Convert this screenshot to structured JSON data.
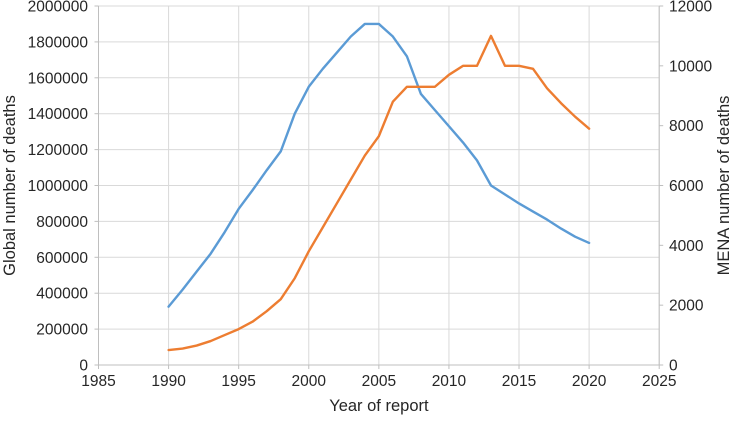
{
  "chart_data": {
    "type": "line",
    "title": "",
    "xlabel": "Year of report",
    "grid": true,
    "legend_position": "none",
    "x_axis": {
      "min": 1985,
      "max": 2025,
      "step": 5,
      "ticks": [
        1985,
        1990,
        1995,
        2000,
        2005,
        2010,
        2015,
        2020,
        2025
      ]
    },
    "y_left": {
      "label": "Global number of deaths",
      "min": 0,
      "max": 2000000,
      "step": 200000,
      "ticks": [
        0,
        200000,
        400000,
        600000,
        800000,
        1000000,
        1200000,
        1400000,
        1600000,
        1800000,
        2000000
      ]
    },
    "y_right": {
      "label": "MENA number of deaths",
      "min": 0,
      "max": 12000,
      "step": 2000,
      "ticks": [
        0,
        2000,
        4000,
        6000,
        8000,
        10000,
        12000
      ]
    },
    "x": [
      1990,
      1991,
      1992,
      1993,
      1994,
      1995,
      1996,
      1997,
      1998,
      1999,
      2000,
      2001,
      2002,
      2003,
      2004,
      2005,
      2006,
      2007,
      2008,
      2009,
      2010,
      2011,
      2012,
      2013,
      2014,
      2015,
      2016,
      2017,
      2018,
      2019,
      2020
    ],
    "series": [
      {
        "name": "Global number of deaths",
        "axis": "left",
        "color": "#5B9BD5",
        "values": [
          325000,
          420000,
          520000,
          620000,
          740000,
          870000,
          975000,
          1085000,
          1190000,
          1400000,
          1550000,
          1650000,
          1740000,
          1830000,
          1900000,
          1900000,
          1830000,
          1720000,
          1510000,
          1420000,
          1330000,
          1240000,
          1140000,
          1000000,
          950000,
          900000,
          855000,
          810000,
          760000,
          715000,
          680000
        ]
      },
      {
        "name": "MENA number of deaths",
        "axis": "right",
        "color": "#ED7D31",
        "values": [
          500,
          550,
          650,
          800,
          1000,
          1200,
          1450,
          1800,
          2200,
          2900,
          3800,
          4600,
          5400,
          6200,
          7000,
          7650,
          8800,
          9300,
          9300,
          9300,
          9700,
          10000,
          10000,
          11000,
          10000,
          10000,
          9900,
          9250,
          8750,
          8300,
          7900
        ]
      }
    ]
  },
  "styles": {
    "grid_color": "#D9D9D9",
    "axis_color": "#BFBFBF",
    "text_color": "#262626",
    "background": "#FFFFFF",
    "line_width": 2.4
  }
}
